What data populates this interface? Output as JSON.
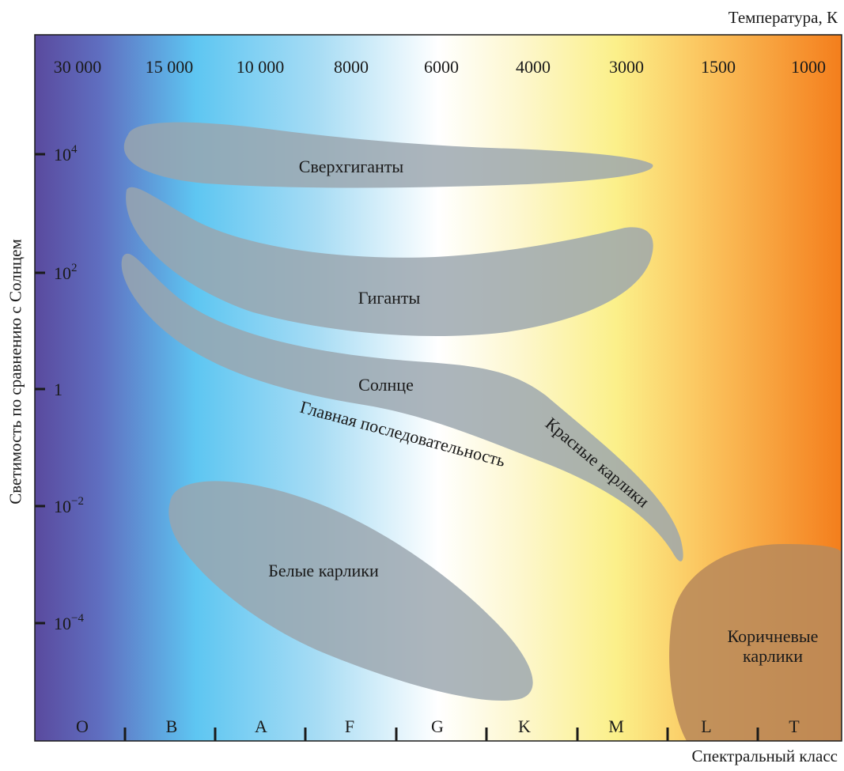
{
  "top_axis": {
    "title": "Температура, К",
    "ticks": [
      "30 000",
      "15 000",
      "10 000",
      "8000",
      "6000",
      "4000",
      "3000",
      "1500",
      "1000"
    ]
  },
  "left_axis": {
    "title": "Светимость по сравнению с Солнцем",
    "ticks": [
      {
        "base": "10",
        "exp": "4"
      },
      {
        "base": "10",
        "exp": "2"
      },
      {
        "base": "1",
        "exp": ""
      },
      {
        "base": "10",
        "exp": "−2"
      },
      {
        "base": "10",
        "exp": "−4"
      }
    ]
  },
  "bottom_axis": {
    "title": "Спектральный класс",
    "classes": [
      "O",
      "B",
      "A",
      "F",
      "G",
      "K",
      "M",
      "L",
      "T"
    ]
  },
  "regions": {
    "supergiants": "Сверхгиганты",
    "giants": "Гиганты",
    "sun": "Солнце",
    "main_sequence": "Главная последовательность",
    "red_dwarfs": "Красные карлики",
    "white_dwarfs": "Белые карлики",
    "brown_dwarfs_line1": "Коричневые",
    "brown_dwarfs_line2": "карлики"
  },
  "colors": {
    "class_O": "#5a4a9e",
    "class_B": "#5ec4f0",
    "class_G": "#ffffff",
    "class_M": "#fbf08a",
    "class_T": "#f47e1c",
    "region_fill": "#9aa5ad",
    "brown_dwarf_fill": "#b98a5a"
  }
}
